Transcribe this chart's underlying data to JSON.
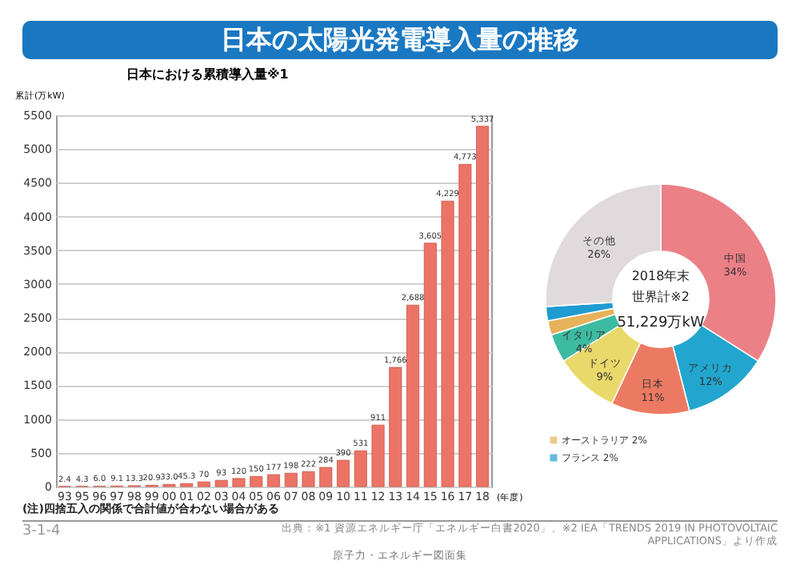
{
  "chart_data": [
    {
      "type": "bar",
      "title": "日本の太陽光発電導入量の推移",
      "subtitle": "日本における累積導入量※1",
      "ylabel": "累計(万kW)",
      "xlabel": "(年度)",
      "categories": [
        "93",
        "95",
        "96",
        "97",
        "98",
        "99",
        "00",
        "01",
        "02",
        "03",
        "04",
        "05",
        "06",
        "07",
        "08",
        "09",
        "10",
        "11",
        "12",
        "13",
        "14",
        "15",
        "16",
        "17",
        "18"
      ],
      "values": [
        2.4,
        4.3,
        6.0,
        9.1,
        13.3,
        20.9,
        33.0,
        45.3,
        70,
        93,
        120,
        150,
        177,
        198,
        222,
        284,
        390,
        531,
        911,
        1766,
        2688,
        3605,
        4229,
        4773,
        5337
      ],
      "value_labels": [
        "2.4",
        "4.3",
        "6.0",
        "9.1",
        "13.3",
        "20.9",
        "33.0",
        "45.3",
        "70",
        "93",
        "120",
        "150",
        "177",
        "198",
        "222",
        "284",
        "390",
        "531",
        "911",
        "1,766",
        "2,688",
        "3,605",
        "4,229",
        "4,773",
        "5,337"
      ],
      "color": "#ec7466",
      "ylim": [
        0,
        5500
      ],
      "yticks": [
        0,
        500,
        1000,
        1500,
        2000,
        2500,
        3000,
        3500,
        4000,
        4500,
        5000,
        5500
      ],
      "grid": "y",
      "annotations": [
        "(注)四捨五入の関係で合計値が合わない場合がある",
        "出典：※1 資源エネルギー庁「エネルギー白書2020」、※2 IEA「TRENDS 2019 IN PHOTOVOLTAIC APPLICATIONS」より作成",
        "3-1-4",
        "原子力・エネルギー図面集"
      ]
    },
    {
      "type": "donut",
      "categories": [
        "中国",
        "アメリカ",
        "日本",
        "ドイツ",
        "イタリア",
        "オーストラリア",
        "フランス",
        "その他"
      ],
      "values": [
        34,
        12,
        11,
        9,
        4,
        2,
        2,
        26
      ],
      "value_labels": [
        "34%",
        "12%",
        "11%",
        "9%",
        "4%",
        "2%",
        "2%",
        "26%"
      ],
      "colors": [
        "#ec8087",
        "#22a6cf",
        "#ec7a62",
        "#e9d96a",
        "#3dbba0",
        "#e8b25a",
        "#1e9bd0",
        "#e0dadd"
      ],
      "legend": "bottom left",
      "annotations": [
        "2018年末",
        "世界計※2",
        "51,229万kW"
      ]
    }
  ]
}
